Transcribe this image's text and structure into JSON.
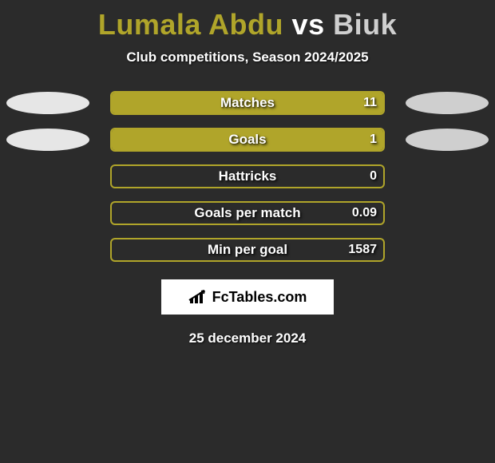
{
  "title": {
    "player1": "Lumala Abdu",
    "vs": "vs",
    "player2": "Biuk",
    "color_p1": "#b0a52a",
    "color_vs": "#ffffff",
    "color_p2": "#cfcfcf"
  },
  "subtitle": "Club competitions, Season 2024/2025",
  "colors": {
    "bar_fill": "#b0a52a",
    "bar_border": "#b0a52a",
    "ellipse_left": "#e6e6e6",
    "ellipse_right": "#cfcfcf",
    "background": "#2b2b2b"
  },
  "rows": [
    {
      "label": "Matches",
      "value": "11",
      "fill_pct": 100,
      "show_left_ellipse": true,
      "show_right_ellipse": true
    },
    {
      "label": "Goals",
      "value": "1",
      "fill_pct": 100,
      "show_left_ellipse": true,
      "show_right_ellipse": true
    },
    {
      "label": "Hattricks",
      "value": "0",
      "fill_pct": 0,
      "show_left_ellipse": false,
      "show_right_ellipse": false
    },
    {
      "label": "Goals per match",
      "value": "0.09",
      "fill_pct": 0,
      "show_left_ellipse": false,
      "show_right_ellipse": false
    },
    {
      "label": "Min per goal",
      "value": "1587",
      "fill_pct": 0,
      "show_left_ellipse": false,
      "show_right_ellipse": false
    }
  ],
  "logo": {
    "text": "FcTables.com",
    "icon_name": "bar-chart-icon"
  },
  "date": "25 december 2024"
}
